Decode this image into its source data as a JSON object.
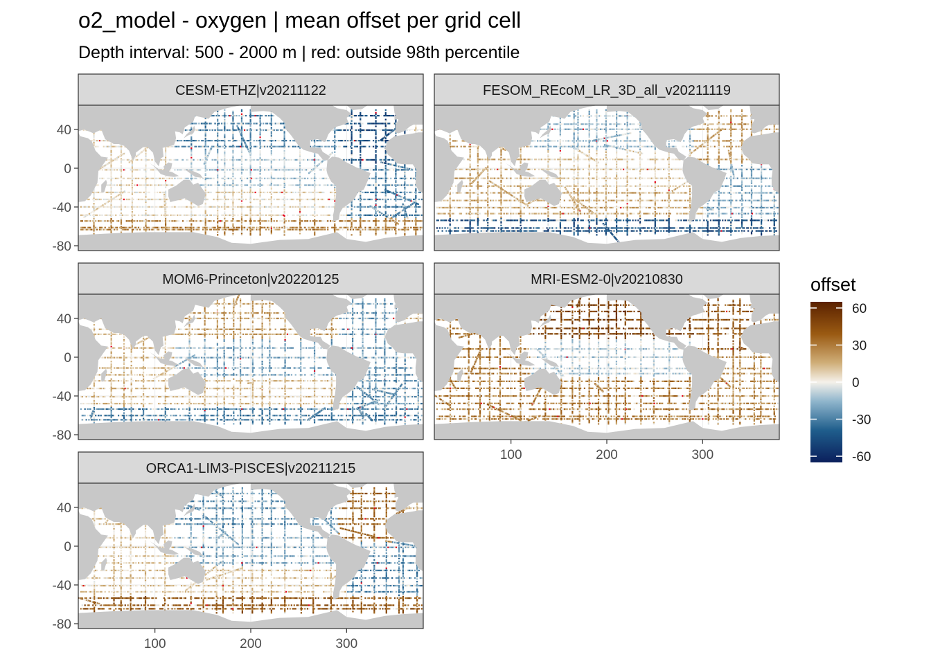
{
  "title": "o2_model - oxygen  | mean offset per grid cell",
  "subtitle": "Depth interval: 500 - 2000 m | red: outside 98th percentile",
  "colors": {
    "land": "#c8c8c8",
    "ocean": "#ffffff",
    "strip_bg": "#d9d9d9",
    "panel_border": "#333333",
    "outlier": "#e4001b",
    "scale_low": "#0b1f5c",
    "scale_mid": "#f5f1ea",
    "scale_high": "#6b2a00"
  },
  "chart_data": {
    "type": "heatmap",
    "description_none": "",
    "x_axis": {
      "label": "",
      "range": [
        20,
        380
      ],
      "ticks": [
        100,
        200,
        300
      ],
      "tick_labels": [
        "100",
        "200",
        "300"
      ]
    },
    "y_axis": {
      "label": "",
      "range": [
        -85,
        65
      ],
      "ticks": [
        40,
        0,
        -40,
        -80
      ],
      "tick_labels": [
        "40",
        "0",
        "-40",
        "-80"
      ]
    },
    "legend": {
      "title": "offset",
      "placement": "right",
      "range": [
        -65,
        65
      ],
      "ticks": [
        60,
        30,
        0,
        -30,
        -60
      ],
      "tick_labels": [
        "60",
        "30",
        "0",
        "-30",
        "-60"
      ]
    },
    "panels": [
      {
        "name": "CESM-ETHZ|v20211122",
        "row": 0,
        "col": 0,
        "x_ticks_shown": false,
        "bias": {
          "north_pacific": -28,
          "north_atlantic": -45,
          "south_atlantic": -30,
          "indian": 5,
          "southern_ocean": 28,
          "tropical_pacific": -12
        }
      },
      {
        "name": "FESOM_REcoM_LR_3D_all_v20211119",
        "row": 0,
        "col": 1,
        "x_ticks_shown": false,
        "bias": {
          "north_pacific": -15,
          "north_atlantic": 22,
          "south_atlantic": -20,
          "indian": 18,
          "southern_ocean": -45,
          "tropical_pacific": 8
        }
      },
      {
        "name": "MOM6-Princeton|v20220125",
        "row": 1,
        "col": 0,
        "x_ticks_shown": false,
        "bias": {
          "north_pacific": 20,
          "north_atlantic": -22,
          "south_atlantic": -25,
          "indian": 12,
          "southern_ocean": -30,
          "tropical_pacific": -20
        }
      },
      {
        "name": "MRI-ESM2-0|v20210830",
        "row": 1,
        "col": 1,
        "x_ticks_shown": true,
        "bias": {
          "north_pacific": 50,
          "north_atlantic": 40,
          "south_atlantic": 25,
          "indian": 30,
          "southern_ocean": 30,
          "tropical_pacific": -10
        }
      },
      {
        "name": "ORCA1-LIM3-PISCES|v20211215",
        "row": 2,
        "col": 0,
        "x_ticks_shown": true,
        "bias": {
          "north_pacific": -25,
          "north_atlantic": 35,
          "south_atlantic": -28,
          "indian": 10,
          "southern_ocean": 40,
          "tropical_pacific": -18
        }
      }
    ]
  }
}
